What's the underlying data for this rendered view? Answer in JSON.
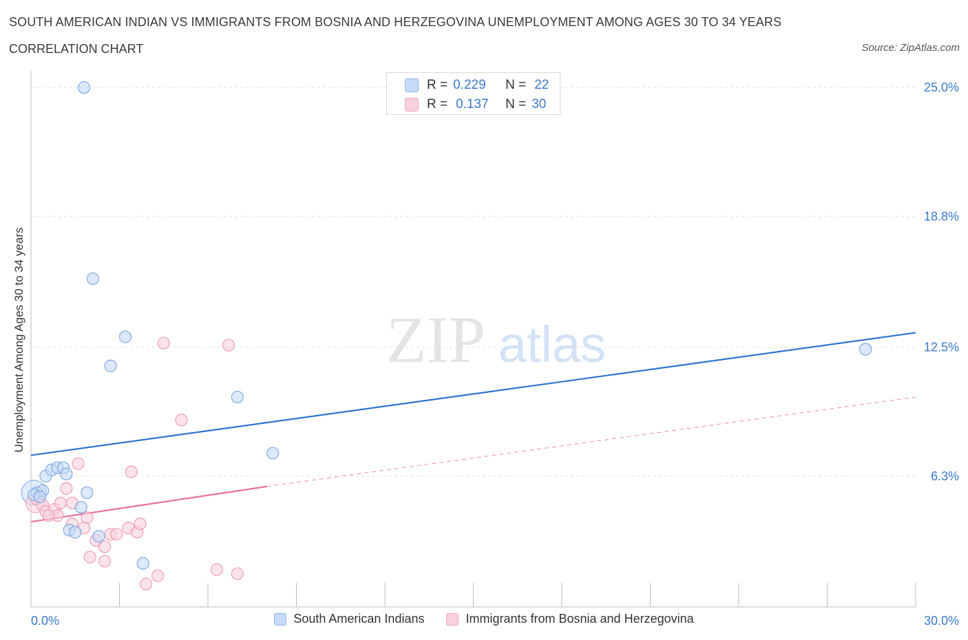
{
  "header": {
    "title": "SOUTH AMERICAN INDIAN VS IMMIGRANTS FROM BOSNIA AND HERZEGOVINA UNEMPLOYMENT AMONG AGES 30 TO 34 YEARS",
    "subtitle": "CORRELATION CHART",
    "source": "Source: ZipAtlas.com"
  },
  "stats": {
    "row1": {
      "r_label": "R =",
      "r_value": "0.229",
      "n_label": "N =",
      "n_value": "22"
    },
    "row2": {
      "r_label": "R =",
      "r_value": "0.137",
      "n_label": "N =",
      "n_value": "30"
    }
  },
  "watermark": {
    "zip": "ZIP",
    "atlas": "atlas"
  },
  "colors": {
    "blue_fill": "#c6dbf7",
    "blue_stroke": "#7fa9e0",
    "blue_line": "#2f74d0",
    "pink_fill": "#f9d0dd",
    "pink_stroke": "#ee9db8",
    "pink_line": "#e8709a",
    "grid": "#e3e3e3",
    "axis_text": "#3a78c9"
  },
  "chart_data": {
    "type": "scatter",
    "title": "SOUTH AMERICAN INDIAN VS IMMIGRANTS FROM BOSNIA AND HERZEGOVINA UNEMPLOYMENT AMONG AGES 30 TO 34 YEARS",
    "xlabel": "",
    "ylabel": "Unemployment Among Ages 30 to 34 years",
    "xlim": [
      0,
      30
    ],
    "ylim": [
      0,
      25.8
    ],
    "x_tick_labels": [
      {
        "value": 0,
        "label": "0.0%"
      },
      {
        "value": 30,
        "label": "30.0%"
      }
    ],
    "y_tick_labels": [
      {
        "value": 6.3,
        "label": "6.3%"
      },
      {
        "value": 12.5,
        "label": "12.5%"
      },
      {
        "value": 18.8,
        "label": "18.8%"
      },
      {
        "value": 25.0,
        "label": "25.0%"
      }
    ],
    "legend": [
      "South American Indians",
      "Immigrants from Bosnia and Herzegovina"
    ],
    "series": [
      {
        "name": "South American Indians",
        "color": "#7fa9e0",
        "points": [
          [
            1.8,
            25.0
          ],
          [
            2.1,
            15.8
          ],
          [
            3.2,
            13.0
          ],
          [
            2.7,
            11.6
          ],
          [
            7.0,
            10.1
          ],
          [
            8.2,
            7.4
          ],
          [
            0.2,
            5.5
          ],
          [
            0.4,
            5.6
          ],
          [
            0.5,
            6.3
          ],
          [
            0.7,
            6.6
          ],
          [
            0.9,
            6.7
          ],
          [
            1.1,
            6.7
          ],
          [
            1.2,
            6.4
          ],
          [
            1.9,
            5.5
          ],
          [
            1.7,
            4.8
          ],
          [
            1.3,
            3.7
          ],
          [
            1.5,
            3.6
          ],
          [
            2.3,
            3.4
          ],
          [
            3.8,
            2.1
          ],
          [
            0.1,
            5.4
          ],
          [
            0.3,
            5.3
          ],
          [
            28.3,
            12.4
          ]
        ],
        "trend": {
          "x": [
            0,
            30
          ],
          "y": [
            7.3,
            13.2
          ]
        }
      },
      {
        "name": "Immigrants from Bosnia and Herzegovina",
        "color": "#ee9db8",
        "points": [
          [
            4.5,
            12.7
          ],
          [
            6.7,
            12.6
          ],
          [
            5.1,
            9.0
          ],
          [
            1.6,
            6.9
          ],
          [
            3.4,
            6.5
          ],
          [
            1.2,
            5.7
          ],
          [
            0.2,
            5.2
          ],
          [
            0.4,
            4.9
          ],
          [
            0.5,
            4.6
          ],
          [
            0.8,
            4.7
          ],
          [
            0.9,
            4.4
          ],
          [
            1.0,
            5.0
          ],
          [
            1.4,
            4.0
          ],
          [
            1.4,
            5.0
          ],
          [
            1.9,
            4.3
          ],
          [
            1.8,
            3.8
          ],
          [
            2.2,
            3.2
          ],
          [
            2.5,
            2.9
          ],
          [
            2.7,
            3.5
          ],
          [
            2.9,
            3.5
          ],
          [
            3.3,
            3.8
          ],
          [
            3.6,
            3.6
          ],
          [
            3.7,
            4.0
          ],
          [
            2.0,
            2.4
          ],
          [
            2.5,
            2.2
          ],
          [
            4.3,
            1.5
          ],
          [
            3.9,
            1.1
          ],
          [
            6.3,
            1.8
          ],
          [
            7.0,
            1.6
          ],
          [
            0.6,
            4.4
          ]
        ],
        "trend": {
          "x": [
            0,
            8
          ],
          "y": [
            4.1,
            5.8
          ]
        },
        "trend_extension": {
          "x": [
            8,
            30
          ],
          "y": [
            5.8,
            10.1
          ]
        }
      }
    ]
  }
}
